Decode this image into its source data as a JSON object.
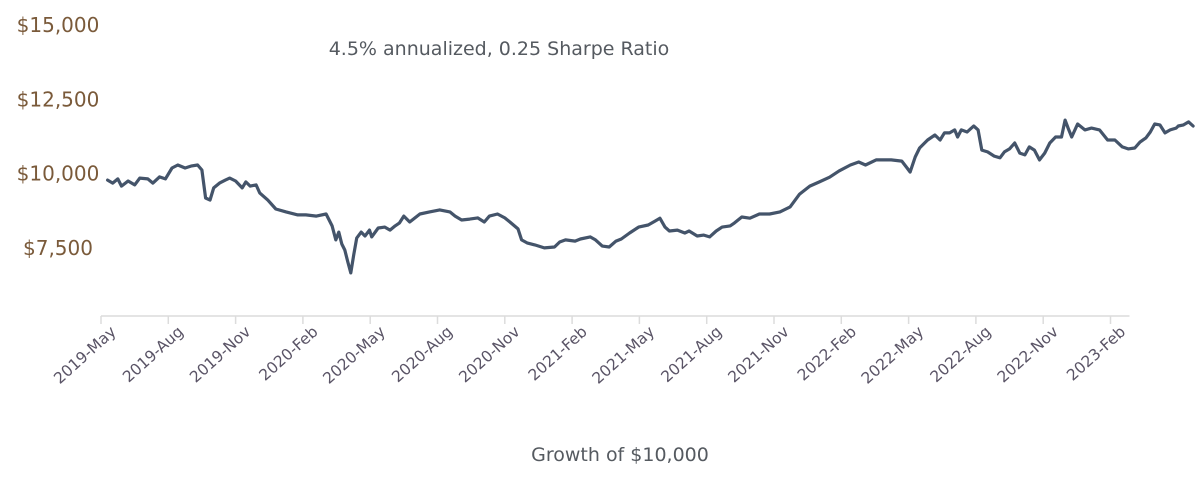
{
  "chart_data": {
    "type": "line",
    "title": "",
    "annotation": "4.5% annualized, 0.25 Sharpe Ratio",
    "xlabel": "Growth of $10,000",
    "ylabel": "",
    "ylim": [
      5200,
      15000
    ],
    "grid": false,
    "legend": "none",
    "line_color": "#44546a",
    "y_ticks": [
      7500,
      10000,
      12500,
      15000
    ],
    "y_tick_labels": [
      "$7,500",
      "$10,000",
      "$12,500",
      "$15,000"
    ],
    "x_tick_labels": [
      "2019-May",
      "2019-Aug",
      "2019-Nov",
      "2020-Feb",
      "2020-May",
      "2020-Aug",
      "2020-Nov",
      "2021-Feb",
      "2021-May",
      "2021-Aug",
      "2021-Nov",
      "2022-Feb",
      "2022-May",
      "2022-Aug",
      "2022-Nov",
      "2023-Feb"
    ],
    "series": [
      {
        "x": [
          "2019-05-10",
          "2019-05-17",
          "2019-05-24",
          "2019-05-29",
          "2019-06-07",
          "2019-06-16",
          "2019-06-23",
          "2019-07-04",
          "2019-07-11",
          "2019-07-20",
          "2019-07-28",
          "2019-08-06",
          "2019-08-14",
          "2019-08-24",
          "2019-09-02",
          "2019-09-10",
          "2019-09-16",
          "2019-09-21",
          "2019-09-27",
          "2019-10-02",
          "2019-10-10",
          "2019-10-18",
          "2019-10-24",
          "2019-11-01",
          "2019-11-10",
          "2019-11-15",
          "2019-11-21",
          "2019-11-29",
          "2019-12-04",
          "2019-12-15",
          "2019-12-26",
          "2020-01-09",
          "2020-01-25",
          "2020-02-05",
          "2020-02-19",
          "2020-03-03",
          "2020-03-11",
          "2020-03-16",
          "2020-03-20",
          "2020-03-24",
          "2020-03-28",
          "2020-04-01",
          "2020-04-05",
          "2020-04-09",
          "2020-04-13",
          "2020-04-19",
          "2020-04-24",
          "2020-04-30",
          "2020-05-03",
          "2020-05-12",
          "2020-05-21",
          "2020-05-28",
          "2020-06-04",
          "2020-06-10",
          "2020-06-16",
          "2020-06-24",
          "2020-07-08",
          "2020-07-21",
          "2020-08-04",
          "2020-08-18",
          "2020-08-25",
          "2020-09-03",
          "2020-09-14",
          "2020-09-25",
          "2020-10-04",
          "2020-10-11",
          "2020-10-22",
          "2020-11-01",
          "2020-11-08",
          "2020-11-19",
          "2020-11-24",
          "2020-12-02",
          "2020-12-12",
          "2020-12-25",
          "2021-01-08",
          "2021-01-15",
          "2021-01-23",
          "2021-02-05",
          "2021-02-12",
          "2021-02-25",
          "2021-03-04",
          "2021-03-13",
          "2021-03-22",
          "2021-03-31",
          "2021-04-07",
          "2021-04-18",
          "2021-04-30",
          "2021-05-13",
          "2021-05-22",
          "2021-05-29",
          "2021-06-05",
          "2021-06-11",
          "2021-06-22",
          "2021-07-02",
          "2021-07-08",
          "2021-07-19",
          "2021-07-28",
          "2021-08-05",
          "2021-08-14",
          "2021-08-22",
          "2021-09-02",
          "2021-09-08",
          "2021-09-18",
          "2021-09-29",
          "2021-10-12",
          "2021-10-26",
          "2021-11-09",
          "2021-11-23",
          "2021-12-06",
          "2021-12-20",
          "2022-01-02",
          "2022-01-16",
          "2022-01-29",
          "2022-02-13",
          "2022-02-24",
          "2022-03-05",
          "2022-03-19",
          "2022-03-26",
          "2022-04-08",
          "2022-04-22",
          "2022-04-29",
          "2022-05-03",
          "2022-05-10",
          "2022-05-16",
          "2022-05-27",
          "2022-06-06",
          "2022-06-13",
          "2022-06-19",
          "2022-06-26",
          "2022-07-03",
          "2022-07-07",
          "2022-07-12",
          "2022-07-20",
          "2022-07-29",
          "2022-08-04",
          "2022-08-09",
          "2022-08-17",
          "2022-08-26",
          "2022-09-03",
          "2022-09-09",
          "2022-09-16",
          "2022-09-23",
          "2022-09-30",
          "2022-10-07",
          "2022-10-13",
          "2022-10-20",
          "2022-10-27",
          "2022-11-03",
          "2022-11-10",
          "2022-11-18",
          "2022-11-26",
          "2022-12-01",
          "2022-12-05",
          "2022-12-10",
          "2022-12-18",
          "2022-12-28",
          "2023-01-06",
          "2023-01-17",
          "2023-01-28",
          "2023-02-07",
          "2023-02-17",
          "2023-02-25",
          "2023-03-06",
          "2023-03-13",
          "2023-03-21",
          "2023-03-27",
          "2023-04-02",
          "2023-04-09",
          "2023-04-16",
          "2023-04-23",
          "2023-05-01",
          "2023-05-04",
          "2023-05-11",
          "2023-05-18",
          "2023-05-24"
        ],
        "values": [
          9780,
          9680,
          9820,
          9580,
          9750,
          9620,
          9850,
          9820,
          9680,
          9890,
          9820,
          10190,
          10290,
          10190,
          10260,
          10290,
          10120,
          9180,
          9110,
          9520,
          9680,
          9780,
          9850,
          9750,
          9520,
          9720,
          9580,
          9620,
          9350,
          9110,
          8810,
          8710,
          8610,
          8610,
          8570,
          8640,
          8240,
          7770,
          8030,
          7630,
          7430,
          7030,
          6660,
          7260,
          7830,
          8030,
          7900,
          8100,
          7870,
          8170,
          8200,
          8100,
          8240,
          8340,
          8570,
          8370,
          8640,
          8710,
          8780,
          8710,
          8570,
          8440,
          8470,
          8510,
          8370,
          8570,
          8640,
          8510,
          8370,
          8140,
          7770,
          7660,
          7600,
          7500,
          7530,
          7700,
          7770,
          7730,
          7800,
          7870,
          7770,
          7560,
          7530,
          7730,
          7800,
          8000,
          8200,
          8270,
          8400,
          8500,
          8200,
          8070,
          8100,
          8000,
          8070,
          7900,
          7930,
          7870,
          8070,
          8200,
          8240,
          8340,
          8540,
          8500,
          8640,
          8640,
          8710,
          8880,
          9310,
          9580,
          9720,
          9880,
          10090,
          10290,
          10390,
          10290,
          10460,
          10460,
          10460,
          10420,
          10190,
          10050,
          10560,
          10860,
          11130,
          11300,
          11130,
          11370,
          11370,
          11470,
          11230,
          11470,
          11400,
          11600,
          11470,
          10790,
          10730,
          10590,
          10530,
          10730,
          10830,
          11030,
          10690,
          10630,
          10900,
          10790,
          10460,
          10690,
          11030,
          11230,
          11230,
          11800,
          11530,
          11230,
          11670,
          11470,
          11530,
          11470,
          11130,
          11130,
          10900,
          10830,
          10860,
          11060,
          11200,
          11400,
          11670,
          11640,
          11370,
          11470,
          11530,
          11600,
          11640,
          11740,
          11600
        ]
      }
    ]
  }
}
